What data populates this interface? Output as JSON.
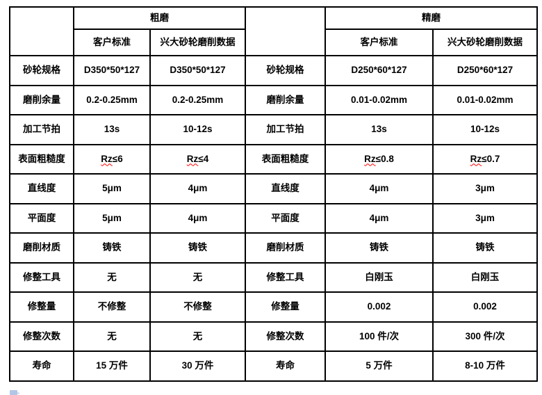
{
  "colors": {
    "background": "#ffffff",
    "table_border": "#000000",
    "text": "#000000",
    "spellcheck_underline": "#ff0000",
    "paste_icon": "#b3c6e7"
  },
  "icons": {
    "bottom_left": "paste-options-clipboard-icon"
  },
  "spellcheck": {
    "flagged_prefix": "Rz"
  },
  "table": {
    "header": {
      "rough_group": "粗磨",
      "fine_group": "精磨",
      "subheaders": [
        "客户标准",
        "兴大砂轮磨削数据",
        "客户标准",
        "兴大砂轮磨削数据"
      ]
    },
    "rows": [
      [
        "砂轮规格",
        "D350*50*127",
        "D350*50*127",
        "砂轮规格",
        "D250*60*127",
        "D250*60*127"
      ],
      [
        "磨削余量",
        "0.2-0.25mm",
        "0.2-0.25mm",
        "磨削余量",
        "0.01-0.02mm",
        "0.01-0.02mm"
      ],
      [
        "加工节拍",
        "13s",
        "10-12s",
        "加工节拍",
        "13s",
        "10-12s"
      ],
      [
        "表面粗糙度",
        "Rz≤6",
        "Rz≤4",
        "表面粗糙度",
        "Rz≤0.8",
        "Rz≤0.7"
      ],
      [
        "直线度",
        "5μm",
        "4μm",
        "直线度",
        "4μm",
        "3μm"
      ],
      [
        "平面度",
        "5μm",
        "4μm",
        "平面度",
        "4μm",
        "3μm"
      ],
      [
        "磨削材质",
        "铸铁",
        "铸铁",
        "磨削材质",
        "铸铁",
        "铸铁"
      ],
      [
        "修整工具",
        "无",
        "无",
        "修整工具",
        "白刚玉",
        "白刚玉"
      ],
      [
        "修整量",
        "不修整",
        "不修整",
        "修整量",
        "0.002",
        "0.002"
      ],
      [
        "修整次数",
        "无",
        "无",
        "修整次数",
        "100 件/次",
        "300 件/次"
      ],
      [
        "寿命",
        "15 万件",
        "30 万件",
        "寿命",
        "5 万件",
        "8-10 万件"
      ]
    ]
  }
}
